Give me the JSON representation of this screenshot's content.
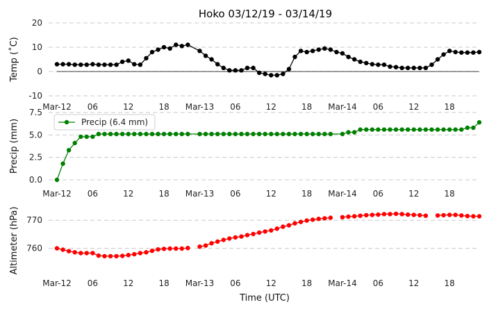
{
  "title": "Hoko 03/12/19 - 03/14/19",
  "xlabel": "Time (UTC)",
  "x_tick_labels": [
    "Mar-12",
    "06",
    "12",
    "18",
    "Mar-13",
    "06",
    "12",
    "18",
    "Mar-14",
    "06",
    "12",
    "18"
  ],
  "chart_data": [
    {
      "type": "line",
      "ylabel": "Temp (˚C)",
      "ylim": [
        -10,
        20
      ],
      "yticks": [
        -10,
        0,
        10,
        20
      ],
      "zero_line": true,
      "grid": "horizontal dashed",
      "color": "#000000",
      "legend": null,
      "x_hours": [
        0,
        1,
        2,
        3,
        4,
        5,
        6,
        7,
        8,
        9,
        10,
        11,
        12,
        13,
        14,
        15,
        16,
        17,
        18,
        19,
        20,
        21,
        22,
        24,
        25,
        26,
        27,
        28,
        29,
        30,
        31,
        32,
        33,
        34,
        35,
        36,
        37,
        38,
        39,
        40,
        41,
        42,
        43,
        44,
        45,
        46,
        47,
        48,
        49,
        50,
        51,
        52,
        53,
        54,
        55,
        56,
        57,
        58,
        59,
        60,
        61,
        62,
        63,
        64,
        65,
        66,
        67,
        68,
        69,
        70,
        71
      ],
      "values": [
        3,
        3,
        3,
        2.8,
        2.8,
        2.8,
        3,
        2.8,
        2.8,
        2.8,
        2.8,
        4,
        4.5,
        3,
        2.8,
        5.5,
        8,
        9,
        10,
        9.5,
        11,
        10.5,
        11,
        8.5,
        6.5,
        5,
        3,
        1.5,
        0.5,
        0.5,
        0.5,
        1.5,
        1.5,
        -0.5,
        -1,
        -1.5,
        -1.5,
        -1,
        1,
        6,
        8.5,
        8,
        8.5,
        9,
        9.5,
        9,
        8,
        7.5,
        6,
        5,
        4,
        3.5,
        3,
        2.8,
        2.8,
        2,
        1.8,
        1.5,
        1.5,
        1.5,
        1.5,
        1.5,
        2.8,
        5,
        7,
        8.5,
        8,
        7.8,
        7.8,
        7.8,
        8
      ]
    },
    {
      "type": "line",
      "ylabel": "Precip (mm)",
      "ylim": [
        0,
        7.5
      ],
      "yticks": [
        0.0,
        2.5,
        5.0,
        7.5
      ],
      "ytick_labels": [
        "0.0",
        "2.5",
        "5.0",
        "7.5"
      ],
      "grid": "horizontal dashed",
      "color": "#008000",
      "legend": "Precip (6.4 mm)",
      "x_hours": [
        0,
        1,
        2,
        3,
        4,
        5,
        6,
        7,
        8,
        9,
        10,
        11,
        12,
        13,
        14,
        15,
        16,
        17,
        18,
        19,
        20,
        21,
        22,
        24,
        25,
        26,
        27,
        28,
        29,
        30,
        31,
        32,
        33,
        34,
        35,
        36,
        37,
        38,
        39,
        40,
        41,
        42,
        43,
        44,
        45,
        46,
        48,
        49,
        50,
        51,
        52,
        53,
        54,
        55,
        56,
        57,
        58,
        59,
        60,
        61,
        62,
        63,
        64,
        65,
        66,
        67,
        68,
        69,
        70,
        71
      ],
      "values": [
        0,
        1.8,
        3.3,
        4.1,
        4.8,
        4.8,
        4.8,
        5.1,
        5.1,
        5.1,
        5.1,
        5.1,
        5.1,
        5.1,
        5.1,
        5.1,
        5.1,
        5.1,
        5.1,
        5.1,
        5.1,
        5.1,
        5.1,
        5.1,
        5.1,
        5.1,
        5.1,
        5.1,
        5.1,
        5.1,
        5.1,
        5.1,
        5.1,
        5.1,
        5.1,
        5.1,
        5.1,
        5.1,
        5.1,
        5.1,
        5.1,
        5.1,
        5.1,
        5.1,
        5.1,
        5.1,
        5.1,
        5.3,
        5.3,
        5.6,
        5.6,
        5.6,
        5.6,
        5.6,
        5.6,
        5.6,
        5.6,
        5.6,
        5.6,
        5.6,
        5.6,
        5.6,
        5.6,
        5.6,
        5.6,
        5.6,
        5.6,
        5.8,
        5.8,
        6.4
      ]
    },
    {
      "type": "line",
      "ylabel": "Altimeter (hPa)",
      "ylim": [
        750.5,
        775
      ],
      "yticks": [
        760,
        770
      ],
      "grid": "horizontal dashed",
      "color": "#ff0000",
      "legend": null,
      "x_hours": [
        0,
        1,
        2,
        3,
        4,
        5,
        6,
        7,
        8,
        9,
        10,
        11,
        12,
        13,
        14,
        15,
        16,
        17,
        18,
        19,
        20,
        21,
        22,
        24,
        25,
        26,
        27,
        28,
        29,
        30,
        31,
        32,
        33,
        34,
        35,
        36,
        37,
        38,
        39,
        40,
        41,
        42,
        43,
        44,
        45,
        46,
        48,
        49,
        50,
        51,
        52,
        53,
        54,
        55,
        56,
        57,
        58,
        59,
        60,
        61,
        62,
        64,
        65,
        66,
        67,
        68,
        69,
        70,
        71
      ],
      "values": [
        760,
        759.5,
        759,
        758.6,
        758.3,
        758.3,
        758.3,
        757.4,
        757.2,
        757.2,
        757.2,
        757.3,
        757.6,
        757.9,
        758.3,
        758.6,
        759.1,
        759.6,
        759.8,
        759.9,
        759.9,
        759.9,
        760.1,
        760.6,
        761,
        761.8,
        762.4,
        763,
        763.5,
        763.9,
        764.2,
        764.7,
        765.1,
        765.6,
        766,
        766.4,
        767,
        767.7,
        768.2,
        768.9,
        769.4,
        769.9,
        770.2,
        770.5,
        770.7,
        770.9,
        771.1,
        771.3,
        771.4,
        771.6,
        771.8,
        771.9,
        772,
        772.2,
        772.2,
        772.3,
        772.2,
        772,
        771.9,
        771.8,
        771.6,
        771.7,
        771.8,
        771.9,
        771.9,
        771.7,
        771.5,
        771.4,
        771.4
      ]
    }
  ]
}
